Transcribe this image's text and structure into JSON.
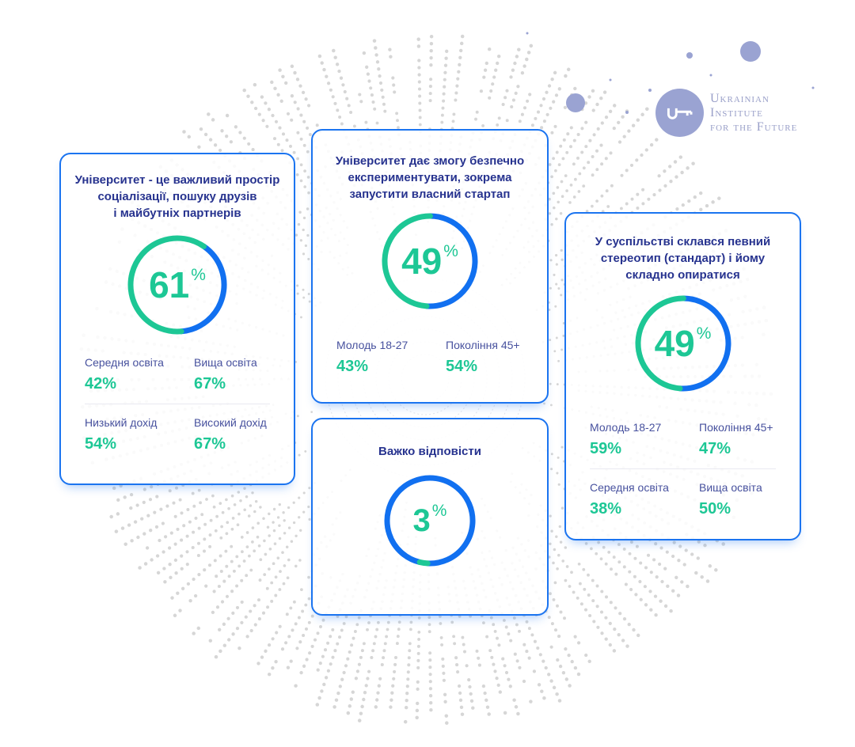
{
  "logo": {
    "org_lines": [
      "Ukrainian",
      "Institute",
      "for the Future"
    ],
    "icon": "key-icon"
  },
  "colors": {
    "green": "#1dc795",
    "blue": "#1170f0",
    "title_navy": "#27338f",
    "label_slate": "#47519e",
    "card_border": "#1b74f0",
    "logo_purple": "#9aa3d2",
    "pattern_gray": "#d6d6d6"
  },
  "chart_data": [
    {
      "type": "donut",
      "title": "Університет - це важливий простір\nсоціалізації, пошуку друзів\nі майбутніх партнерів",
      "value": 61,
      "unit": "%",
      "breakdown": [
        {
          "label": "Середня освіта",
          "value": 42,
          "display": "42%"
        },
        {
          "label": "Вища освіта",
          "value": 67,
          "display": "67%"
        },
        {
          "label": "Низький дохід",
          "value": 54,
          "display": "54%"
        },
        {
          "label": "Високий дохід",
          "value": 67,
          "display": "67%"
        }
      ]
    },
    {
      "type": "donut",
      "title": "Університет дає змогу безпечно\nекспериментувати, зокрема\nзапустити власний стартап",
      "value": 49,
      "unit": "%",
      "breakdown": [
        {
          "label": "Молодь 18-27",
          "value": 43,
          "display": "43%"
        },
        {
          "label": "Покоління 45+",
          "value": 54,
          "display": "54%"
        }
      ]
    },
    {
      "type": "donut",
      "title": "Важко відповісти",
      "value": 3,
      "unit": "%",
      "breakdown": []
    },
    {
      "type": "donut",
      "title": "У суспільстві склався певний\nстереотип (стандарт) і йому\nскладно опиратися",
      "value": 49,
      "unit": "%",
      "breakdown": [
        {
          "label": "Молодь 18-27",
          "value": 59,
          "display": "59%"
        },
        {
          "label": "Покоління 45+",
          "value": 47,
          "display": "47%"
        },
        {
          "label": "Середня освіта",
          "value": 38,
          "display": "38%"
        },
        {
          "label": "Вища освіта",
          "value": 50,
          "display": "50%"
        }
      ]
    }
  ]
}
